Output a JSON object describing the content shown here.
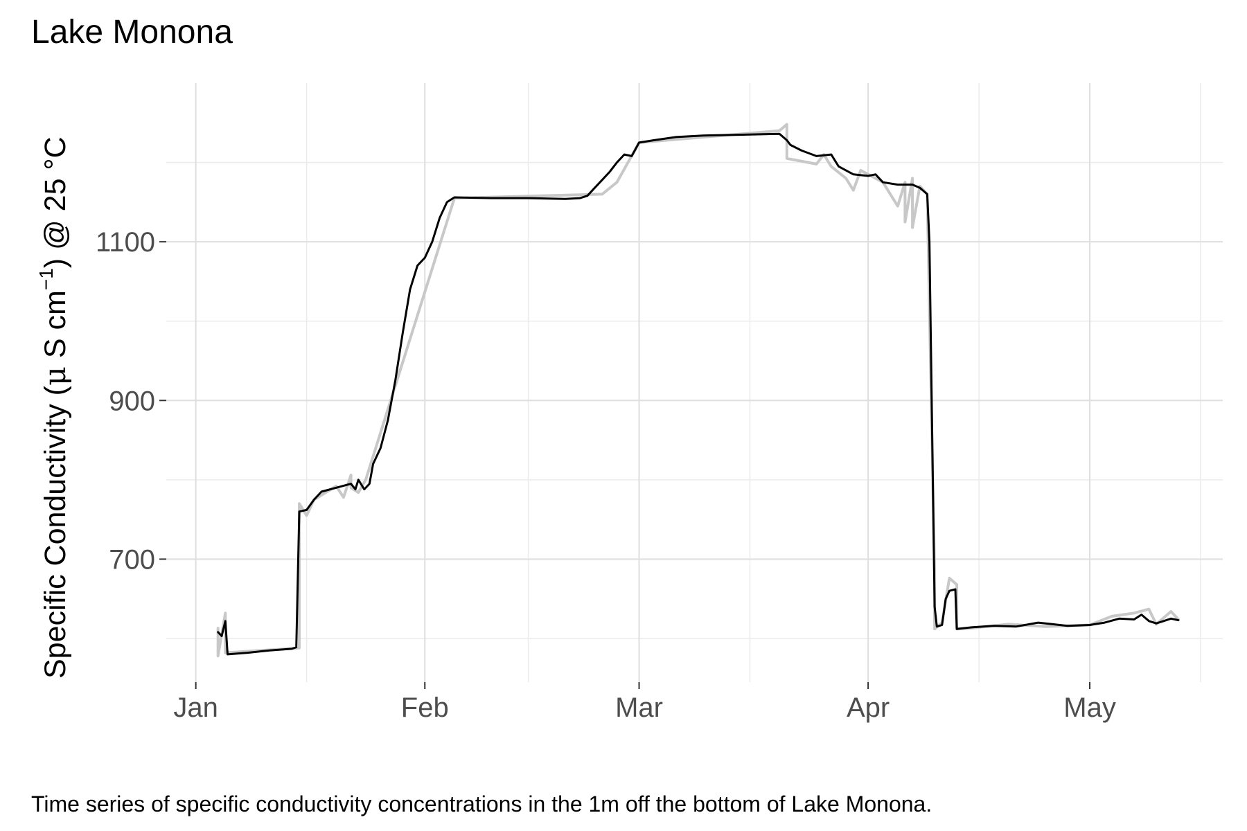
{
  "chart_data": {
    "type": "line",
    "title": "Lake Monona",
    "caption": "Time series of specific conductivity concentrations in the 1m off the bottom of Lake Monona.",
    "ylabel": {
      "main": "Specific Conductivity (",
      "mu": "μ",
      "unit": " S cm",
      "exponent": "−1",
      "suffix": ") @ 25 °C"
    },
    "xlabel": "",
    "x_ticks": [
      {
        "date": "2024-01-01",
        "label": "Jan"
      },
      {
        "date": "2024-02-01",
        "label": "Feb"
      },
      {
        "date": "2024-03-01",
        "label": "Mar"
      },
      {
        "date": "2024-04-01",
        "label": "Apr"
      },
      {
        "date": "2024-05-01",
        "label": "May"
      }
    ],
    "x_minor_ticks": [
      "2024-01-16",
      "2024-02-15",
      "2024-03-16",
      "2024-04-16",
      "2024-05-16"
    ],
    "xlim": [
      "2023-12-28",
      "2024-05-19"
    ],
    "y_ticks": [
      700,
      900,
      1100
    ],
    "y_minor_ticks": [
      600,
      800,
      1000,
      1200
    ],
    "ylim": [
      545,
      1300
    ],
    "grid": true,
    "series": [
      {
        "color": "#c8c8c8",
        "width": 4,
        "points": [
          [
            "2024-01-04",
            613
          ],
          [
            "2024-01-04",
            578
          ],
          [
            "2024-01-05",
            632
          ],
          [
            "2024-01-05",
            582
          ],
          [
            "2024-01-15",
            588
          ],
          [
            "2024-01-15",
            770
          ],
          [
            "2024-01-16",
            755
          ],
          [
            "2024-01-17",
            775
          ],
          [
            "2024-01-20",
            792
          ],
          [
            "2024-01-21",
            778
          ],
          [
            "2024-01-22",
            806
          ],
          [
            "2024-01-22",
            790
          ],
          [
            "2024-01-23",
            784
          ],
          [
            "2024-01-24",
            800
          ],
          [
            "2024-02-05",
            1155
          ],
          [
            "2024-02-25",
            1160
          ],
          [
            "2024-02-27",
            1175
          ],
          [
            "2024-03-01",
            1225
          ],
          [
            "2024-03-20",
            1240
          ],
          [
            "2024-03-21",
            1248
          ],
          [
            "2024-03-21",
            1205
          ],
          [
            "2024-03-25",
            1198
          ],
          [
            "2024-03-26",
            1210
          ],
          [
            "2024-03-27",
            1195
          ],
          [
            "2024-03-29",
            1180
          ],
          [
            "2024-03-30",
            1165
          ],
          [
            "2024-03-31",
            1190
          ],
          [
            "2024-04-03",
            1175
          ],
          [
            "2024-04-05",
            1145
          ],
          [
            "2024-04-06",
            1175
          ],
          [
            "2024-04-06",
            1125
          ],
          [
            "2024-04-07",
            1180
          ],
          [
            "2024-04-07",
            1118
          ],
          [
            "2024-04-08",
            1170
          ],
          [
            "2024-04-09",
            1160
          ],
          [
            "2024-04-10",
            680
          ],
          [
            "2024-04-10",
            612
          ],
          [
            "2024-04-11",
            620
          ],
          [
            "2024-04-12",
            676
          ],
          [
            "2024-04-13",
            668
          ],
          [
            "2024-04-13",
            612
          ],
          [
            "2024-04-15",
            613
          ],
          [
            "2024-04-20",
            618
          ],
          [
            "2024-04-25",
            615
          ],
          [
            "2024-05-01",
            617
          ],
          [
            "2024-05-04",
            628
          ],
          [
            "2024-05-07",
            632
          ],
          [
            "2024-05-09",
            637
          ],
          [
            "2024-05-10",
            618
          ],
          [
            "2024-05-12",
            634
          ],
          [
            "2024-05-13",
            624
          ]
        ]
      },
      {
        "color": "#000000",
        "width": 3,
        "points": [
          [
            "2024-01-04",
            608
          ],
          [
            "2024-01-04.5",
            603
          ],
          [
            "2024-01-05",
            622
          ],
          [
            "2024-01-05.3",
            580
          ],
          [
            "2024-01-08",
            582
          ],
          [
            "2024-01-11",
            585
          ],
          [
            "2024-01-14",
            587
          ],
          [
            "2024-01-14.6",
            589
          ],
          [
            "2024-01-15",
            760
          ],
          [
            "2024-01-16",
            762
          ],
          [
            "2024-01-17",
            775
          ],
          [
            "2024-01-18",
            785
          ],
          [
            "2024-01-20",
            790
          ],
          [
            "2024-01-22",
            795
          ],
          [
            "2024-01-22.6",
            788
          ],
          [
            "2024-01-23",
            800
          ],
          [
            "2024-01-23.8",
            788
          ],
          [
            "2024-01-24.5",
            795
          ],
          [
            "2024-01-25",
            820
          ],
          [
            "2024-01-26",
            840
          ],
          [
            "2024-01-27",
            875
          ],
          [
            "2024-01-28",
            925
          ],
          [
            "2024-01-29",
            985
          ],
          [
            "2024-01-30",
            1040
          ],
          [
            "2024-01-31",
            1070
          ],
          [
            "2024-02-01",
            1080
          ],
          [
            "2024-02-02",
            1100
          ],
          [
            "2024-02-03",
            1130
          ],
          [
            "2024-02-04",
            1150
          ],
          [
            "2024-02-05",
            1156
          ],
          [
            "2024-02-10",
            1155
          ],
          [
            "2024-02-15",
            1155
          ],
          [
            "2024-02-20",
            1154
          ],
          [
            "2024-02-22",
            1155
          ],
          [
            "2024-02-23",
            1158
          ],
          [
            "2024-02-24",
            1168
          ],
          [
            "2024-02-25",
            1178
          ],
          [
            "2024-02-26",
            1188
          ],
          [
            "2024-02-27",
            1200
          ],
          [
            "2024-02-28",
            1210
          ],
          [
            "2024-02-29",
            1208
          ],
          [
            "2024-03-01",
            1225
          ],
          [
            "2024-03-03",
            1228
          ],
          [
            "2024-03-06",
            1232
          ],
          [
            "2024-03-10",
            1234
          ],
          [
            "2024-03-15",
            1235
          ],
          [
            "2024-03-20",
            1236
          ],
          [
            "2024-03-21",
            1228
          ],
          [
            "2024-03-21.5",
            1222
          ],
          [
            "2024-03-23",
            1215
          ],
          [
            "2024-03-25",
            1208
          ],
          [
            "2024-03-27",
            1210
          ],
          [
            "2024-03-28",
            1195
          ],
          [
            "2024-03-30",
            1185
          ],
          [
            "2024-04-01",
            1183
          ],
          [
            "2024-04-02",
            1185
          ],
          [
            "2024-04-03",
            1175
          ],
          [
            "2024-04-05",
            1172
          ],
          [
            "2024-04-07",
            1172
          ],
          [
            "2024-04-08",
            1168
          ],
          [
            "2024-04-09",
            1160
          ],
          [
            "2024-04-09.3",
            1100
          ],
          [
            "2024-04-10",
            640
          ],
          [
            "2024-04-10.3",
            615
          ],
          [
            "2024-04-11",
            617
          ],
          [
            "2024-04-11.5",
            650
          ],
          [
            "2024-04-12",
            660
          ],
          [
            "2024-04-12.8",
            662
          ],
          [
            "2024-04-13",
            612
          ],
          [
            "2024-04-15",
            614
          ],
          [
            "2024-04-18",
            616
          ],
          [
            "2024-04-21",
            615
          ],
          [
            "2024-04-24",
            620
          ],
          [
            "2024-04-26",
            618
          ],
          [
            "2024-04-28",
            616
          ],
          [
            "2024-05-01",
            617
          ],
          [
            "2024-05-03",
            620
          ],
          [
            "2024-05-05",
            625
          ],
          [
            "2024-05-07",
            624
          ],
          [
            "2024-05-08",
            630
          ],
          [
            "2024-05-09",
            622
          ],
          [
            "2024-05-10",
            619
          ],
          [
            "2024-05-11",
            622
          ],
          [
            "2024-05-12",
            625
          ],
          [
            "2024-05-13",
            623
          ]
        ]
      }
    ]
  }
}
